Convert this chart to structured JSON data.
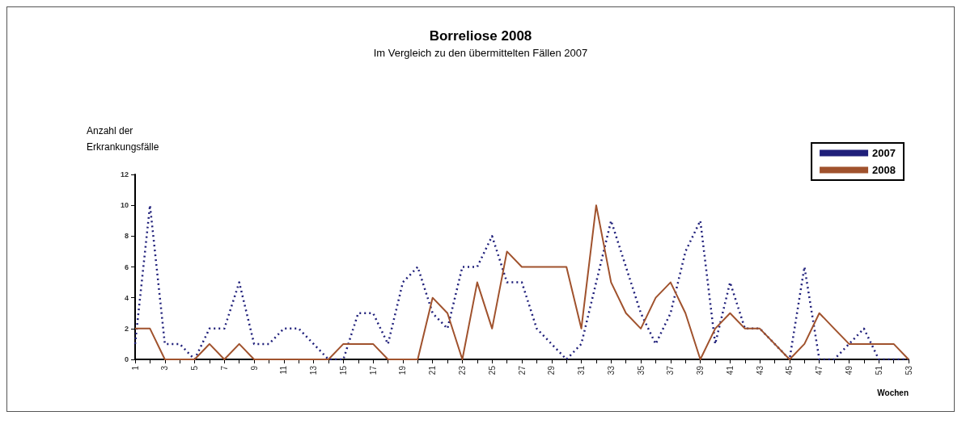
{
  "chart_data": {
    "type": "line",
    "title": "Borreliose 2008",
    "subtitle": "Im Vergleich zu den übermittelten Fällen 2007",
    "ylabel": "Anzahl der\nErkrankungsfälle",
    "xlabel": "Wochen",
    "categories": [
      "1",
      null,
      "3",
      null,
      "5",
      null,
      "7",
      null,
      "9",
      null,
      "11",
      null,
      "13",
      null,
      "15",
      null,
      "17",
      null,
      "19",
      null,
      "21",
      null,
      "23",
      null,
      "25",
      null,
      "27",
      null,
      "29",
      null,
      "31",
      null,
      "33",
      null,
      "35",
      null,
      "37",
      null,
      "39",
      null,
      "41",
      null,
      "43",
      null,
      "45",
      null,
      "47",
      null,
      "49",
      null,
      "51",
      null,
      "53"
    ],
    "ylim": [
      0,
      12
    ],
    "yticks": [
      0,
      2,
      4,
      6,
      8,
      10,
      12
    ],
    "grid": false,
    "legend": "top right",
    "marker": "none",
    "series": [
      {
        "name": "2007",
        "color": "#1f1f7a",
        "line_style": "dotted",
        "values": [
          1,
          10,
          1,
          1,
          0,
          2,
          2,
          5,
          1,
          1,
          2,
          2,
          1,
          0,
          0,
          3,
          3,
          1,
          5,
          6,
          3,
          2,
          6,
          6,
          8,
          5,
          5,
          2,
          1,
          0,
          1,
          5,
          9,
          6,
          3,
          1,
          3,
          7,
          9,
          1,
          5,
          2,
          2,
          1,
          0,
          6,
          0,
          0,
          1,
          2,
          0,
          0,
          0
        ]
      },
      {
        "name": "2008",
        "color": "#a0522d",
        "line_style": "solid",
        "values": [
          2,
          2,
          0,
          0,
          0,
          1,
          0,
          1,
          0,
          0,
          0,
          0,
          0,
          0,
          1,
          1,
          1,
          0,
          0,
          0,
          4,
          3,
          0,
          5,
          2,
          7,
          6,
          6,
          6,
          6,
          2,
          10,
          5,
          3,
          2,
          4,
          5,
          3,
          0,
          2,
          3,
          2,
          2,
          1,
          0,
          1,
          3,
          2,
          1,
          1,
          1,
          1,
          0
        ]
      }
    ]
  }
}
